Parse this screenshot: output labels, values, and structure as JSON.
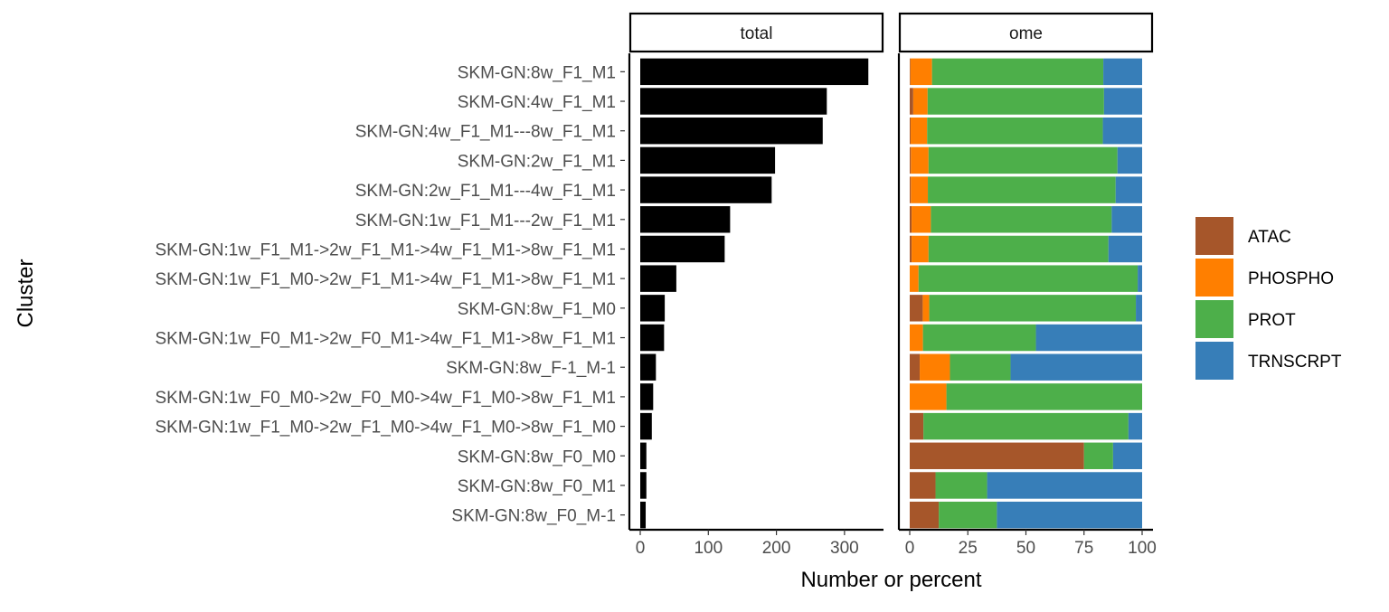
{
  "chart_data": {
    "type": "bar",
    "orientation": "horizontal",
    "xlabel": "Number or percent",
    "ylabel": "Cluster",
    "categories": [
      "SKM-GN:8w_F1_M1",
      "SKM-GN:4w_F1_M1",
      "SKM-GN:4w_F1_M1---8w_F1_M1",
      "SKM-GN:2w_F1_M1",
      "SKM-GN:2w_F1_M1---4w_F1_M1",
      "SKM-GN:1w_F1_M1---2w_F1_M1",
      "SKM-GN:1w_F1_M1->2w_F1_M1->4w_F1_M1->8w_F1_M1",
      "SKM-GN:1w_F1_M0->2w_F1_M1->4w_F1_M1->8w_F1_M1",
      "SKM-GN:8w_F1_M0",
      "SKM-GN:1w_F0_M1->2w_F0_M1->4w_F1_M1->8w_F1_M1",
      "SKM-GN:8w_F-1_M-1",
      "SKM-GN:1w_F0_M0->2w_F0_M0->4w_F1_M0->8w_F1_M1",
      "SKM-GN:1w_F1_M0->2w_F1_M0->4w_F1_M0->8w_F1_M0",
      "SKM-GN:8w_F0_M0",
      "SKM-GN:8w_F0_M1",
      "SKM-GN:8w_F0_M-1"
    ],
    "panels": [
      {
        "strip": "total",
        "type": "bar",
        "xlim": [
          0,
          340
        ],
        "xticks": [
          "0",
          "100",
          "200",
          "300"
        ],
        "xtick_values": [
          0,
          100,
          200,
          300
        ],
        "color": "#000000",
        "values": [
          335,
          274,
          268,
          198,
          193,
          132,
          124,
          53,
          36,
          35,
          23,
          19,
          17,
          9,
          9,
          8
        ]
      },
      {
        "strip": "ome",
        "type": "stacked-bar",
        "xlim": [
          0,
          100
        ],
        "xticks": [
          "0",
          "25",
          "50",
          "75",
          "100"
        ],
        "xtick_values": [
          0,
          25,
          50,
          75,
          100
        ],
        "series": [
          {
            "name": "ATAC",
            "color": "#A6562A",
            "values": [
              0.3,
              1.5,
              0.4,
              0.5,
              0.5,
              0.8,
              0.8,
              0,
              5.6,
              0,
              4.3,
              0,
              5.9,
              75,
              11.1,
              12.5
            ]
          },
          {
            "name": "PHOSPHO",
            "color": "#FF7F00",
            "values": [
              9.3,
              6.2,
              7.1,
              7.6,
              7.3,
              8.3,
              7.3,
              3.8,
              2.8,
              5.7,
              13.0,
              15.8,
              0,
              0,
              0,
              0
            ]
          },
          {
            "name": "PROT",
            "color": "#4DAF4A",
            "values": [
              73.7,
              75.9,
              75.6,
              81.3,
              80.8,
              77.8,
              77.4,
              94.3,
              88.9,
              48.6,
              26.1,
              84.2,
              88.2,
              12.5,
              22.2,
              25.0
            ]
          },
          {
            "name": "TRNSCRPT",
            "color": "#377EB8",
            "values": [
              16.7,
              16.4,
              16.9,
              10.6,
              11.4,
              13.1,
              14.5,
              1.9,
              2.7,
              45.7,
              56.6,
              0,
              5.9,
              12.5,
              66.7,
              62.5
            ]
          }
        ]
      }
    ],
    "legend": {
      "placement": "right",
      "items": [
        "ATAC",
        "PHOSPHO",
        "PROT",
        "TRNSCRPT"
      ]
    },
    "grid": false
  }
}
